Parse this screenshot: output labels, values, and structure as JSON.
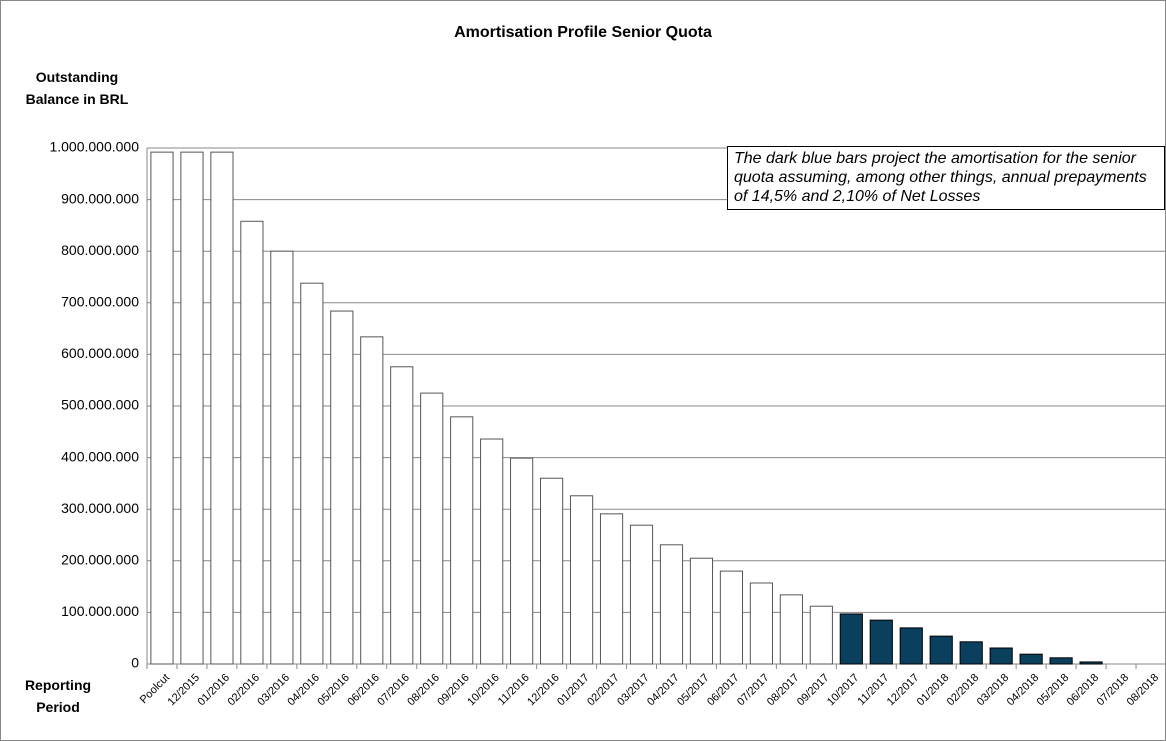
{
  "chart_data": {
    "type": "bar",
    "title": "Amortisation Profile Senior Quota",
    "y_label": "Outstanding Balance in BRL",
    "x_label": "Reporting Period",
    "annotation": "The dark blue bars project the amortisation for the senior quota assuming, among other things, annual prepayments of 14,5% and 2,10% of Net Losses",
    "categories": [
      "Poolcut",
      "12/2015",
      "01/2016",
      "02/2016",
      "03/2016",
      "04/2016",
      "05/2016",
      "06/2016",
      "07/2016",
      "08/2016",
      "09/2016",
      "10/2016",
      "11/2016",
      "12/2016",
      "01/2017",
      "02/2017",
      "03/2017",
      "04/2017",
      "05/2017",
      "06/2017",
      "07/2017",
      "08/2017",
      "09/2017",
      "10/2017",
      "11/2017",
      "12/2017",
      "01/2018",
      "02/2018",
      "03/2018",
      "04/2018",
      "05/2018",
      "06/2018",
      "07/2018",
      "08/2018"
    ],
    "series": [
      {
        "color": "#ffffff",
        "values": [
          992000000,
          992000000,
          992000000,
          858000000,
          800000000,
          738000000,
          684000000,
          634000000,
          576000000,
          525000000,
          479000000,
          436000000,
          399000000,
          360000000,
          326000000,
          291000000,
          269000000,
          231000000,
          205000000,
          180000000,
          157000000,
          134000000,
          112000000,
          null,
          null,
          null,
          null,
          null,
          null,
          null,
          null,
          null,
          null,
          null
        ]
      },
      {
        "color": "#0b3f5e",
        "values": [
          null,
          null,
          null,
          null,
          null,
          null,
          null,
          null,
          null,
          null,
          null,
          null,
          null,
          null,
          null,
          null,
          null,
          null,
          null,
          null,
          null,
          null,
          null,
          97000000,
          85000000,
          70000000,
          54000000,
          43000000,
          31000000,
          19000000,
          12000000,
          4000000,
          0,
          0
        ]
      }
    ],
    "ylim": [
      0,
      1000000000
    ],
    "yticks": [
      0,
      {
        "value": 100000000,
        "label": "100.000.000"
      },
      {
        "value": 200000000,
        "label": "200.000.000"
      },
      {
        "value": 300000000,
        "label": "300.000.000"
      },
      {
        "value": 400000000,
        "label": "400.000.000"
      },
      {
        "value": 500000000,
        "label": "500.000.000"
      },
      {
        "value": 600000000,
        "label": "600.000.000"
      },
      {
        "value": 700000000,
        "label": "700.000.000"
      },
      {
        "value": 800000000,
        "label": "800.000.000"
      },
      {
        "value": 900000000,
        "label": "900.000.000"
      },
      {
        "value": 1000000000,
        "label": "1.000.000.000"
      }
    ],
    "grid": true
  }
}
